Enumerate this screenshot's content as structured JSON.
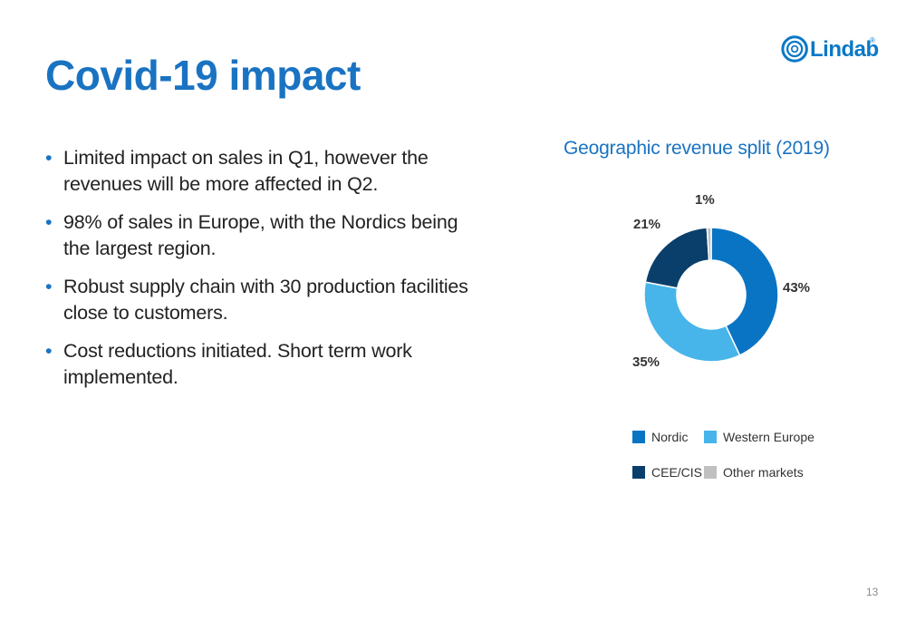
{
  "logo": {
    "name": "Lindab",
    "reg": "®"
  },
  "title": "Covid-19 impact",
  "bullets": [
    "Limited impact on sales in Q1, however the revenues will be more affected in Q2.",
    "98% of sales in Europe, with the Nordics being the largest region.",
    "Robust supply chain with 30 production facilities close to customers.",
    "Cost reductions initiated. Short term work implemented."
  ],
  "page_number": "13",
  "chart_data": {
    "type": "pie",
    "subtype": "donut",
    "title": "Geographic revenue split (2019)",
    "legend_position": "bottom",
    "series": [
      {
        "name": "Nordic",
        "value": 43,
        "label": "43%",
        "color": "#0a74c4"
      },
      {
        "name": "Western Europe",
        "value": 35,
        "label": "35%",
        "color": "#48b5ea"
      },
      {
        "name": "CEE/CIS",
        "value": 21,
        "label": "21%",
        "color": "#0b3f6b"
      },
      {
        "name": "Other markets",
        "value": 1,
        "label": "1%",
        "color": "#c0c0c0"
      }
    ]
  }
}
